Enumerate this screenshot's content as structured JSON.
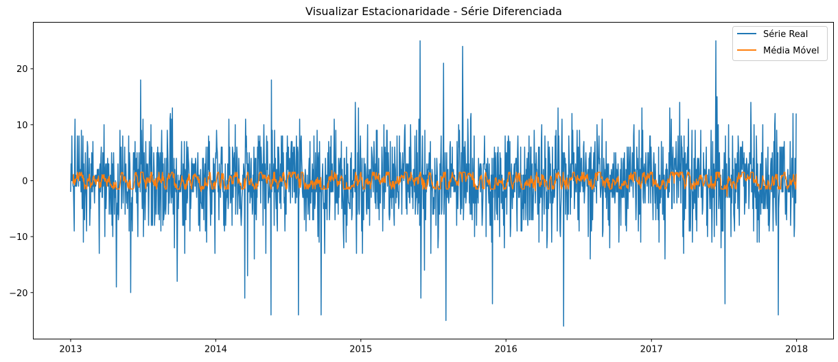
{
  "chart_data": {
    "type": "line",
    "title": "Visualizar Estacionaridade - Série Diferenciada",
    "xlabel": "",
    "ylabel": "",
    "x_range": [
      "2012-09-29",
      "2018-04-04"
    ],
    "ylim": [
      -28.3,
      28.3
    ],
    "x_ticks": [
      "2013",
      "2014",
      "2015",
      "2016",
      "2017",
      "2018"
    ],
    "y_ticks": [
      -20,
      -10,
      0,
      10,
      20
    ],
    "grid": false,
    "legend_position": "upper-right",
    "series": [
      {
        "name": "Série Real",
        "color": "#1f77b4",
        "x_start": "2013-01-01",
        "x_end": "2017-12-31",
        "frequency": "daily",
        "key_points": [
          {
            "x": "2013-01-01",
            "y": -2
          },
          {
            "x": "2013-01-02",
            "y": 3
          },
          {
            "x": "2013-01-10",
            "y": -9
          },
          {
            "x": "2013-01-12",
            "y": 11
          },
          {
            "x": "2013-06-01",
            "y": -20
          },
          {
            "x": "2013-06-26",
            "y": 18
          },
          {
            "x": "2014-03-15",
            "y": -21
          },
          {
            "x": "2014-05-20",
            "y": -24
          },
          {
            "x": "2014-05-21",
            "y": 18
          },
          {
            "x": "2014-07-28",
            "y": -24
          },
          {
            "x": "2014-09-23",
            "y": -24
          },
          {
            "x": "2015-05-30",
            "y": 25
          },
          {
            "x": "2015-06-01",
            "y": -21
          },
          {
            "x": "2015-07-28",
            "y": 21
          },
          {
            "x": "2015-08-03",
            "y": -25
          },
          {
            "x": "2015-09-14",
            "y": 24
          },
          {
            "x": "2015-11-28",
            "y": -22
          },
          {
            "x": "2016-05-25",
            "y": -26
          },
          {
            "x": "2017-06-12",
            "y": 25
          },
          {
            "x": "2017-07-05",
            "y": -22
          },
          {
            "x": "2017-11-16",
            "y": -24
          },
          {
            "x": "2017-12-31",
            "y": 12
          }
        ],
        "typical_range": [
          -10,
          10
        ]
      },
      {
        "name": "Média Móvel",
        "color": "#ff7f0e",
        "x_start": "2013-01-07",
        "x_end": "2017-12-31",
        "frequency": "daily",
        "typical_range": [
          -1.5,
          1.5
        ],
        "key_points": [
          {
            "x": "2013-01-07",
            "y": -0.5
          },
          {
            "x": "2013-11-25",
            "y": -1.9
          },
          {
            "x": "2014-10-20",
            "y": 1.8
          },
          {
            "x": "2016-03-15",
            "y": -1.8
          },
          {
            "x": "2017-07-10",
            "y": -2.8
          },
          {
            "x": "2017-12-31",
            "y": 1.2
          }
        ]
      }
    ]
  }
}
